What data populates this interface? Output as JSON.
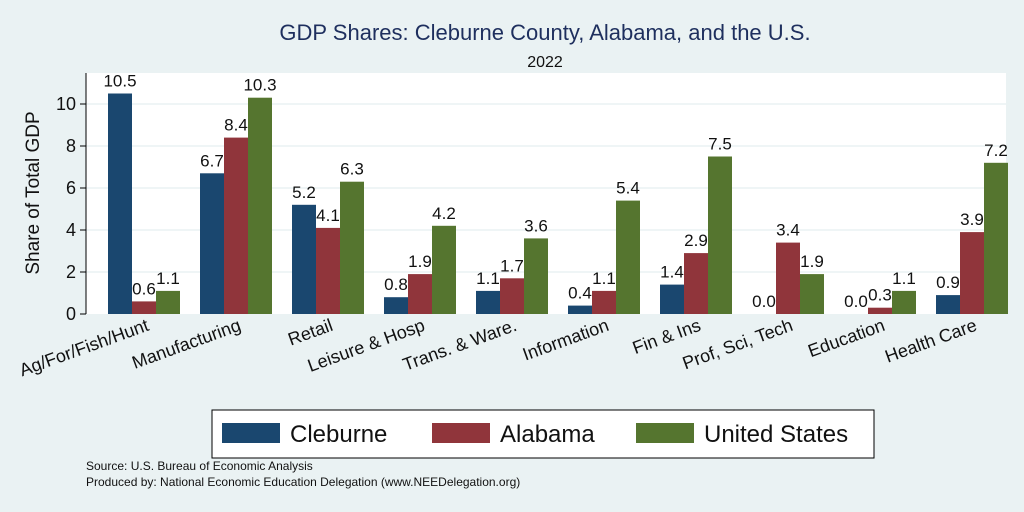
{
  "chart_data": {
    "type": "bar",
    "title": "GDP Shares: Cleburne County, Alabama, and the U.S.",
    "subtitle": "2022",
    "xlabel": "",
    "ylabel": "Share of Total GDP",
    "ylim": [
      0,
      11.5
    ],
    "yticks": [
      0,
      2,
      4,
      6,
      8,
      10
    ],
    "grid": true,
    "legend_position": "bottom",
    "categories": [
      "Ag/For/Fish/Hunt",
      "Manufacturing",
      "Retail",
      "Leisure & Hosp",
      "Trans. & Ware.",
      "Information",
      "Fin & Ins",
      "Prof, Sci, Tech",
      "Education",
      "Health Care"
    ],
    "series": [
      {
        "name": "Cleburne",
        "color": "#1a476f",
        "values": [
          10.5,
          6.7,
          5.2,
          0.8,
          1.1,
          0.4,
          1.4,
          0.0,
          0.0,
          0.9
        ],
        "labels": [
          "10.5",
          "6.7",
          "5.2",
          "0.8",
          "1.1",
          "0.4",
          "1.4",
          "0.0",
          "0.0",
          "0.9"
        ]
      },
      {
        "name": "Alabama",
        "color": "#90353b",
        "values": [
          0.6,
          8.4,
          4.1,
          1.9,
          1.7,
          1.1,
          2.9,
          3.4,
          0.3,
          3.9
        ],
        "labels": [
          "0.6",
          "8.4",
          "4.1",
          "1.9",
          "1.7",
          "1.1",
          "2.9",
          "3.4",
          "0.3",
          "3.9"
        ]
      },
      {
        "name": "United States",
        "color": "#55752f",
        "values": [
          1.1,
          10.3,
          6.3,
          4.2,
          3.6,
          5.4,
          7.5,
          1.9,
          1.1,
          7.2
        ],
        "labels": [
          "1.1",
          "10.3",
          "6.3",
          "4.2",
          "3.6",
          "5.4",
          "7.5",
          "1.9",
          "1.1",
          "7.2"
        ]
      }
    ]
  },
  "notes": {
    "source": "Source: U.S. Bureau of Economic Analysis",
    "produced_by": "Produced by: National Economic Education Delegation (www.NEEDelegation.org)"
  }
}
